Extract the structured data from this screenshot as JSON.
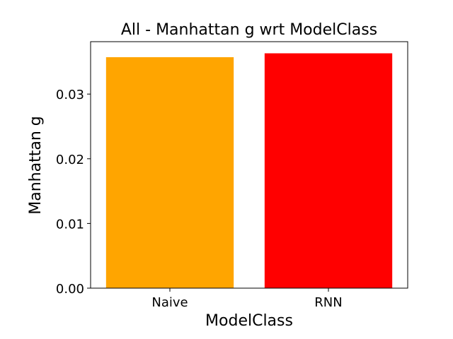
{
  "chart_data": {
    "type": "bar",
    "title": "All - Manhattan g wrt ModelClass",
    "xlabel": "ModelClass",
    "ylabel": "Manhattan g",
    "categories": [
      "Naive",
      "RNN"
    ],
    "values": [
      0.0357,
      0.0363
    ],
    "colors": [
      "#FFA500",
      "#FF0000"
    ],
    "ylim": [
      0,
      0.0381
    ],
    "yticks": [
      0.0,
      0.01,
      0.02,
      0.03
    ],
    "ytick_labels": [
      "0.00",
      "0.01",
      "0.02",
      "0.03"
    ],
    "grid": false,
    "legend": "none"
  }
}
